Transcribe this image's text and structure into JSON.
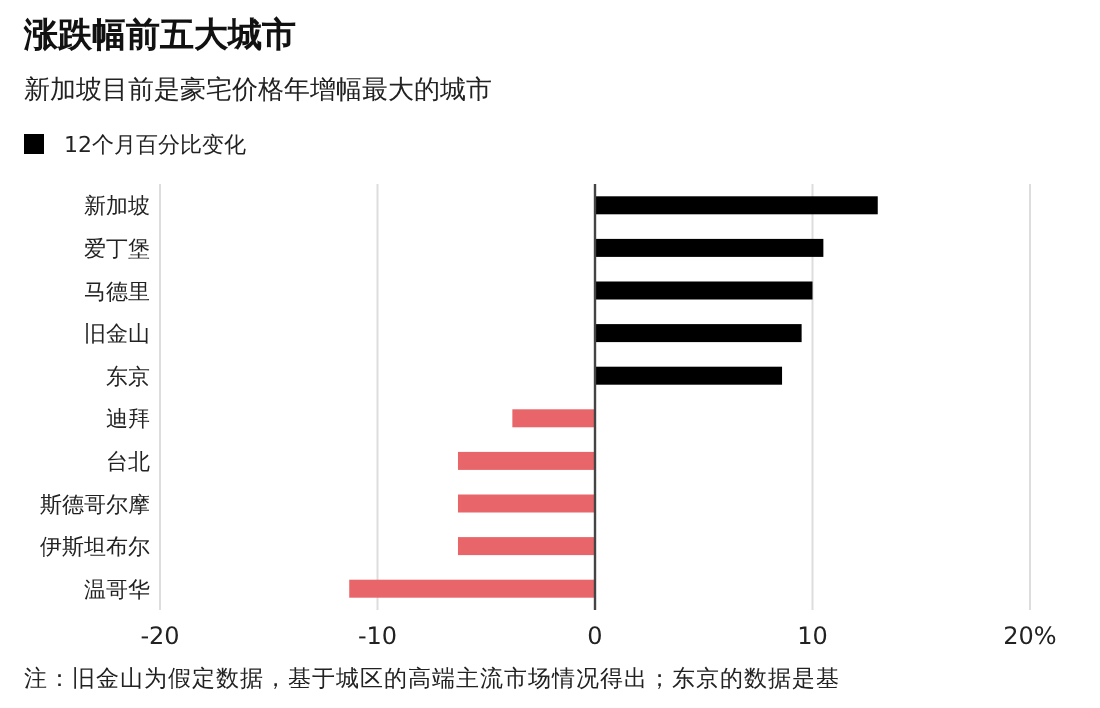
{
  "chart_data": {
    "type": "bar",
    "orientation": "horizontal",
    "title": "涨跌幅前五大城市",
    "subtitle": "新加坡目前是豪宅价格年增幅最大的城市",
    "categories": [
      "新加坡",
      "爱丁堡",
      "马德里",
      "旧金山",
      "东京",
      "迪拜",
      "台北",
      "斯德哥尔摩",
      "伊斯坦布尔",
      "温哥华"
    ],
    "series": [
      {
        "name": "12个月百分比变化",
        "color": "#000000",
        "values": [
          13.0,
          10.5,
          10.0,
          9.5,
          8.6,
          -3.8,
          -6.3,
          -6.3,
          -6.3,
          -11.3
        ],
        "colors": [
          "#000000",
          "#000000",
          "#000000",
          "#000000",
          "#000000",
          "#e8666a",
          "#e8666a",
          "#e8666a",
          "#e8666a",
          "#e8666a"
        ]
      }
    ],
    "xlim": [
      -20,
      20
    ],
    "xticks": [
      -20,
      -10,
      0,
      10,
      {
        "value": 20,
        "label": "20%"
      }
    ],
    "grid": "x",
    "legend": "top left",
    "annotations": [
      "注：旧金山为假定数据，基于城区的高端主流市场情况得出；东京的数据是基"
    ]
  }
}
